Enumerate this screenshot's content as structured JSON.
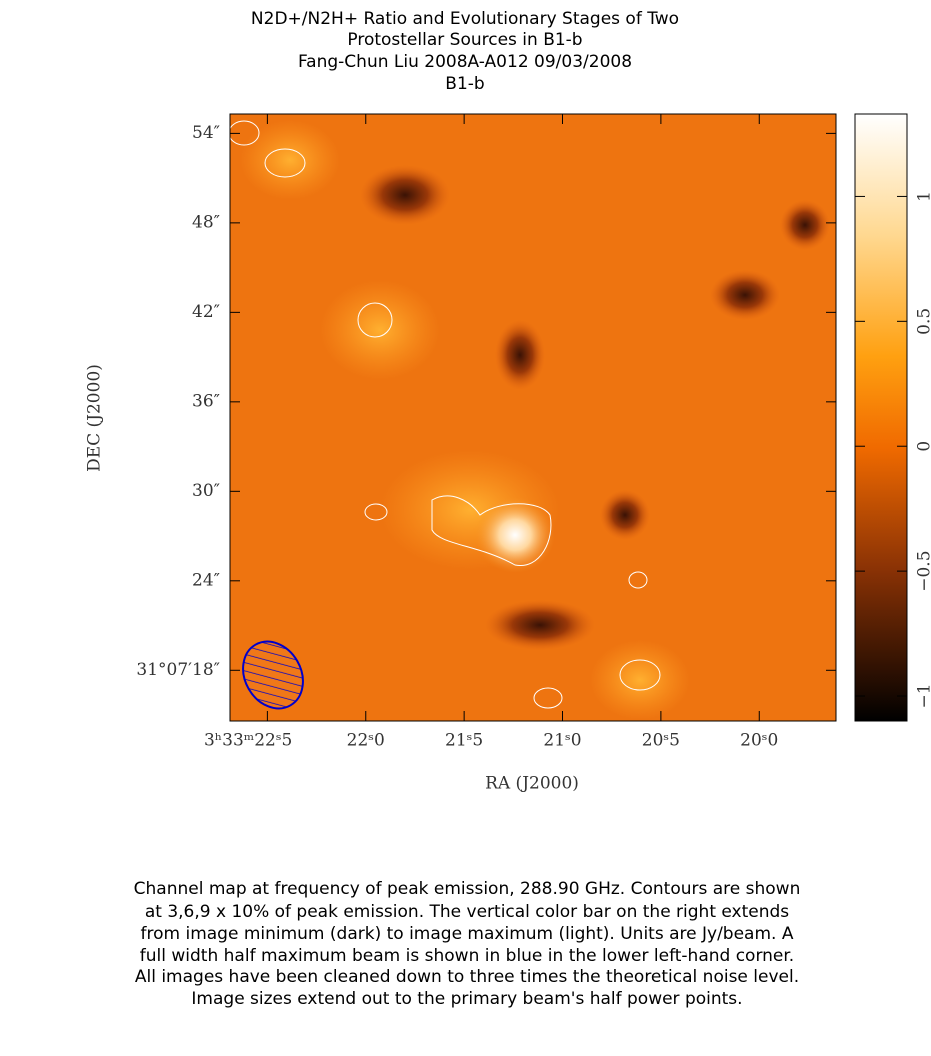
{
  "header": {
    "lines": [
      "N2D+/N2H+ Ratio and Evolutionary Stages of Two",
      "Protostellar Sources in B1-b",
      "Fang-Chun Liu   2008A-A012   09/03/2008",
      "B1-b"
    ]
  },
  "chart_data": {
    "type": "heatmap",
    "x_label": "RA (J2000)",
    "y_label": "DEC (J2000)",
    "xlim": [
      22.69,
      19.61
    ],
    "xticks": [
      {
        "value": 22.5,
        "label": "3ʰ33ᵐ22ˢ5"
      },
      {
        "value": 22.0,
        "label": "22ˢ0"
      },
      {
        "value": 21.5,
        "label": "21ˢ5"
      },
      {
        "value": 21.0,
        "label": "21ˢ0"
      },
      {
        "value": 20.5,
        "label": "20ˢ5"
      },
      {
        "value": 20.0,
        "label": "20ˢ0"
      }
    ],
    "ylim": [
      14.6,
      55.3
    ],
    "yticks": [
      {
        "value": 18,
        "label": "31°07′18″"
      },
      {
        "value": 24,
        "label": "24″"
      },
      {
        "value": 30,
        "label": "30″"
      },
      {
        "value": 36,
        "label": "36″"
      },
      {
        "value": 42,
        "label": "42″"
      },
      {
        "value": 48,
        "label": "48″"
      },
      {
        "value": 54,
        "label": "54″"
      }
    ],
    "colorbar": {
      "lim": [
        -1.1,
        1.33
      ],
      "ticks": [
        {
          "value": -1,
          "label": "−1"
        },
        {
          "value": -0.5,
          "label": "−0.5"
        },
        0,
        0.5,
        1
      ]
    }
  },
  "caption": {
    "lines": [
      "Channel map at frequency of peak emission, 288.90 GHz.  Contours are shown",
      "at 3,6,9 x 10% of peak emission.  The vertical color bar on the right extends",
      "from image minimum (dark) to image maximum (light).  Units are Jy/beam.  A",
      "full width half maximum beam is shown in blue in the lower left-hand corner.",
      "All images have been cleaned down to three times the theoretical noise level.",
      "Image sizes extend out to the primary beam's half power points."
    ]
  }
}
